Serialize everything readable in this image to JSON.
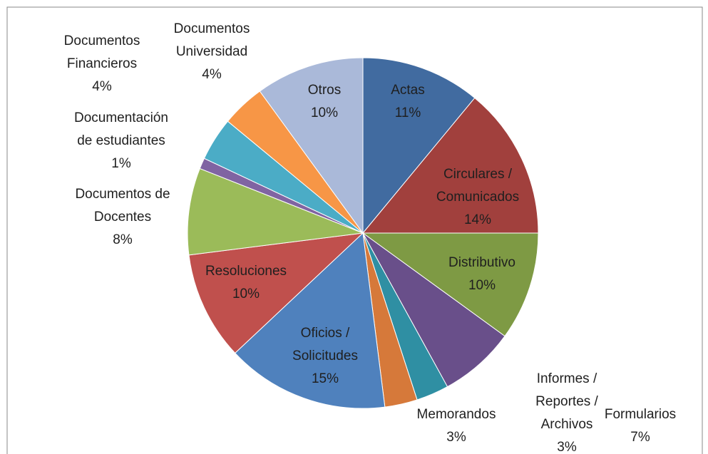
{
  "chart_data": {
    "type": "pie",
    "categories": [
      "Actas",
      "Circulares /\nComunicados",
      "Distributivo",
      "Formularios",
      "Informes /\nReportes /\nArchivos",
      "Memorandos",
      "Oficios /\nSolicitudes",
      "Resoluciones",
      "Documentos de\nDocentes",
      "Documentación\nde estudiantes",
      "Documentos\nFinancieros",
      "Documentos\nUniversidad",
      "Otros"
    ],
    "values": [
      11,
      14,
      10,
      7,
      3,
      3,
      15,
      10,
      8,
      1,
      4,
      4,
      10
    ],
    "value_labels": [
      "11%",
      "14%",
      "10%",
      "7%",
      "3%",
      "3%",
      "15%",
      "10%",
      "8%",
      "1%",
      "4%",
      "4%",
      "10%"
    ],
    "colors": [
      "#416ba0",
      "#a1403d",
      "#7e9a44",
      "#694f8a",
      "#2f8fa3",
      "#d6793a",
      "#4f81bd",
      "#c0504d",
      "#9bbb59",
      "#8064a2",
      "#4bacc6",
      "#f79646",
      "#aab9d9"
    ]
  }
}
